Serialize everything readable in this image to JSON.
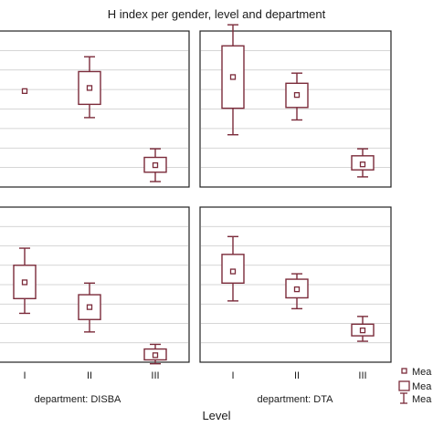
{
  "chart_data": {
    "type": "boxplot",
    "title": "H index per gender, level and department",
    "xlabel": "Level",
    "categories": [
      "I",
      "II",
      "III"
    ],
    "ylim": [
      0,
      1
    ],
    "grid": true,
    "legend_position": "right",
    "legend": [
      "Mea",
      "Mea",
      "Mea"
    ],
    "colors": {
      "marks": "#7b2b3a",
      "grid": "#c8c8c8",
      "frame": "#222222"
    },
    "panels": [
      {
        "department": "",
        "boxes": [
          {
            "level": "I",
            "mean": 0.615,
            "box_low": 0.615,
            "box_high": 0.615,
            "whisker_low": 0.615,
            "whisker_high": 0.615
          },
          {
            "level": "II",
            "mean": 0.635,
            "box_low": 0.53,
            "box_high": 0.74,
            "whisker_low": 0.445,
            "whisker_high": 0.835
          },
          {
            "level": "III",
            "mean": 0.14,
            "box_low": 0.095,
            "box_high": 0.19,
            "whisker_low": 0.035,
            "whisker_high": 0.245
          }
        ]
      },
      {
        "department": "",
        "boxes": [
          {
            "level": "I",
            "mean": 0.705,
            "box_low": 0.505,
            "box_high": 0.905,
            "whisker_low": 0.335,
            "whisker_high": 1.04
          },
          {
            "level": "II",
            "mean": 0.59,
            "box_low": 0.51,
            "box_high": 0.665,
            "whisker_low": 0.43,
            "whisker_high": 0.73
          },
          {
            "level": "III",
            "mean": 0.145,
            "box_low": 0.11,
            "box_high": 0.2,
            "whisker_low": 0.065,
            "whisker_high": 0.245
          }
        ]
      },
      {
        "department": "department: DISBA",
        "boxes": [
          {
            "level": "I",
            "mean": 0.515,
            "box_low": 0.41,
            "box_high": 0.625,
            "whisker_low": 0.315,
            "whisker_high": 0.735
          },
          {
            "level": "II",
            "mean": 0.355,
            "box_low": 0.275,
            "box_high": 0.435,
            "whisker_low": 0.195,
            "whisker_high": 0.51
          },
          {
            "level": "III",
            "mean": 0.045,
            "box_low": 0.015,
            "box_high": 0.085,
            "whisker_low": -0.01,
            "whisker_high": 0.115
          }
        ]
      },
      {
        "department": "department: DTA",
        "boxes": [
          {
            "level": "I",
            "mean": 0.585,
            "box_low": 0.51,
            "box_high": 0.695,
            "whisker_low": 0.395,
            "whisker_high": 0.81
          },
          {
            "level": "II",
            "mean": 0.47,
            "box_low": 0.415,
            "box_high": 0.535,
            "whisker_low": 0.345,
            "whisker_high": 0.57
          },
          {
            "level": "III",
            "mean": 0.205,
            "box_low": 0.17,
            "box_high": 0.245,
            "whisker_low": 0.135,
            "whisker_high": 0.295
          }
        ]
      }
    ]
  }
}
